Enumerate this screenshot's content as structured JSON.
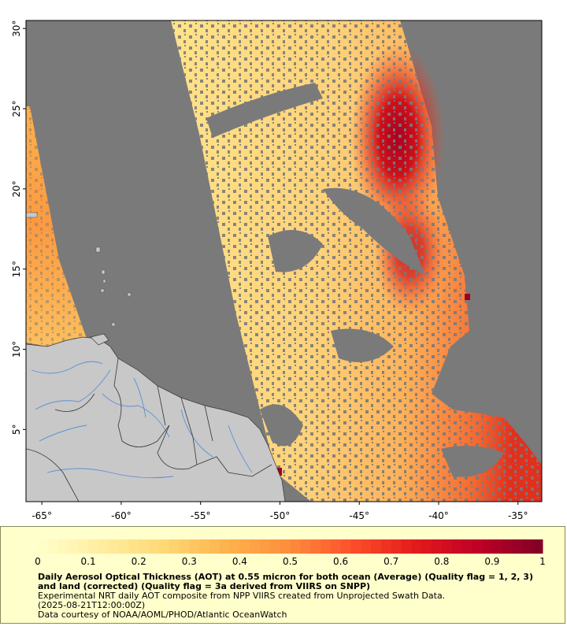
{
  "map": {
    "x_ticks": [
      "-65°",
      "-60°",
      "-55°",
      "-50°",
      "-45°",
      "-40°",
      "-35°"
    ],
    "y_ticks": [
      "5°",
      "10°",
      "15°",
      "20°",
      "25°",
      "30°"
    ],
    "lon_range": [
      -66,
      -33.5
    ],
    "lat_range": [
      0.5,
      30.5
    ],
    "colors": {
      "no_data": "#7a7a7a",
      "land": "#c8c8c8",
      "rivers": "#5b8fd6",
      "borders": "#333333"
    }
  },
  "colorbar": {
    "ticks": [
      "0",
      "0.1",
      "0.2",
      "0.3",
      "0.4",
      "0.5",
      "0.6",
      "0.7",
      "0.8",
      "0.9",
      "1"
    ],
    "range": [
      0,
      1
    ],
    "colors": [
      "#ffffcc",
      "#ffeda0",
      "#fed976",
      "#feb24c",
      "#fd8d3c",
      "#fc4e2a",
      "#e31a1c",
      "#bd0026",
      "#800026"
    ]
  },
  "legend": {
    "title": "Daily Aerosol Optical Thickness (AOT) at 0.55 micron for both ocean (Average) (Quality flag = 1, 2, 3) and land (corrected) (Quality flag = 3a derived from VIIRS on SNPP)",
    "line1": "Experimental NRT daily AOT composite from NPP VIIRS created from Unprojected Swath Data.",
    "line2": "(2025-08-21T12:00:00Z)",
    "line3": "Data courtesy of NOAA/AOML/PHOD/Atlantic OceanWatch"
  }
}
